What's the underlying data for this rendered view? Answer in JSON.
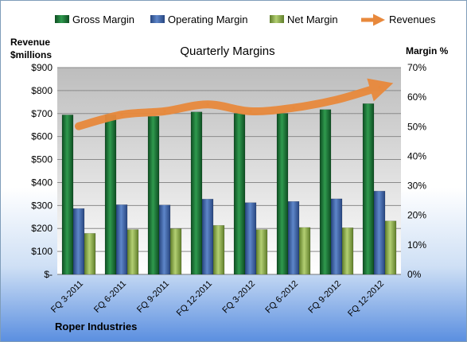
{
  "chart_data": {
    "type": "bar",
    "title": "Quarterly Margins",
    "left_axis_title_line1": "Revenue",
    "left_axis_title_line2": "$millions",
    "right_axis_title": "Margin %",
    "company": "Roper Industries",
    "categories": [
      "FQ 3-2011",
      "FQ 6-2011",
      "FQ 9-2011",
      "FQ 12-2011",
      "FQ 3-2012",
      "FQ 6-2012",
      "FQ 9-2012",
      "FQ 12-2012"
    ],
    "left_ticks": [
      "$-",
      "$100",
      "$200",
      "$300",
      "$400",
      "$500",
      "$600",
      "$700",
      "$800",
      "$900"
    ],
    "right_ticks": [
      "0%",
      "10%",
      "20%",
      "30%",
      "40%",
      "50%",
      "60%",
      "70%"
    ],
    "left_ylim": [
      0,
      900
    ],
    "right_ylim": [
      0,
      70
    ],
    "grid": true,
    "legend_position": "top",
    "series": [
      {
        "name": "Gross Margin",
        "axis": "right",
        "color": "#1f7a3a",
        "values": [
          54,
          54,
          53.5,
          55,
          54.5,
          54.5,
          55.8,
          57.8
        ]
      },
      {
        "name": "Operating Margin",
        "axis": "right",
        "color": "#3f63a8",
        "values": [
          22.3,
          23.6,
          23.5,
          25.5,
          24.3,
          24.7,
          25.6,
          28.2
        ]
      },
      {
        "name": "Net Margin",
        "axis": "right",
        "color": "#8fb050",
        "values": [
          13.9,
          15.2,
          15.5,
          16.6,
          15.2,
          15.9,
          15.8,
          18.1
        ]
      },
      {
        "name": "Revenues",
        "axis": "left",
        "color": "#e8893c",
        "values": [
          645,
          695,
          710,
          740,
          710,
          725,
          760,
          815
        ]
      }
    ]
  }
}
